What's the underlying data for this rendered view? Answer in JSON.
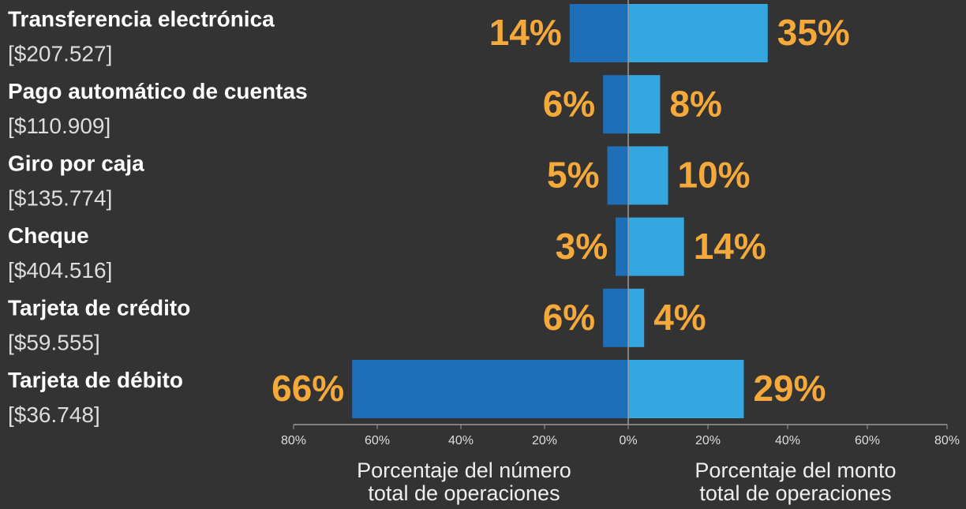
{
  "chart_data": {
    "type": "butterfly",
    "categories": [
      "Transferencia electrónica",
      "Pago automático de cuentas",
      "Giro por caja",
      "Cheque",
      "Tarjeta de crédito",
      "Tarjeta de débito"
    ],
    "category_amounts": [
      "[$207.527]",
      "[$110.909]",
      "[$135.774]",
      "[$404.516]",
      "[$59.555]",
      "[$36.748]"
    ],
    "series": [
      {
        "color": "#1f6fb8",
        "axis_label": [
          "Porcentaje del número",
          "total de operaciones"
        ],
        "values": [
          14,
          6,
          5,
          3,
          6,
          66
        ],
        "value_labels": [
          "14%",
          "6%",
          "5%",
          "3%",
          "6%",
          "66%"
        ],
        "xlim": [
          0,
          80
        ],
        "xticks": [
          {
            "value": 80,
            "label": "80%"
          },
          {
            "value": 60,
            "label": "60%"
          },
          {
            "value": 40,
            "label": "40%"
          },
          {
            "value": 20,
            "label": "20%"
          },
          {
            "value": 0,
            "label": "0%"
          }
        ]
      },
      {
        "color": "#35a7e0",
        "axis_label": [
          "Porcentaje del monto",
          "total de operaciones"
        ],
        "values": [
          35,
          8,
          10,
          14,
          4,
          29
        ],
        "value_labels": [
          "35%",
          "8%",
          "10%",
          "14%",
          "4%",
          "29%"
        ],
        "xlim": [
          0,
          80
        ],
        "xticks": [
          {
            "value": 20,
            "label": "20%"
          },
          {
            "value": 40,
            "label": "40%"
          },
          {
            "value": 60,
            "label": "60%"
          },
          {
            "value": 80,
            "label": "80%"
          }
        ]
      }
    ],
    "label_color": "#f5a93b"
  }
}
